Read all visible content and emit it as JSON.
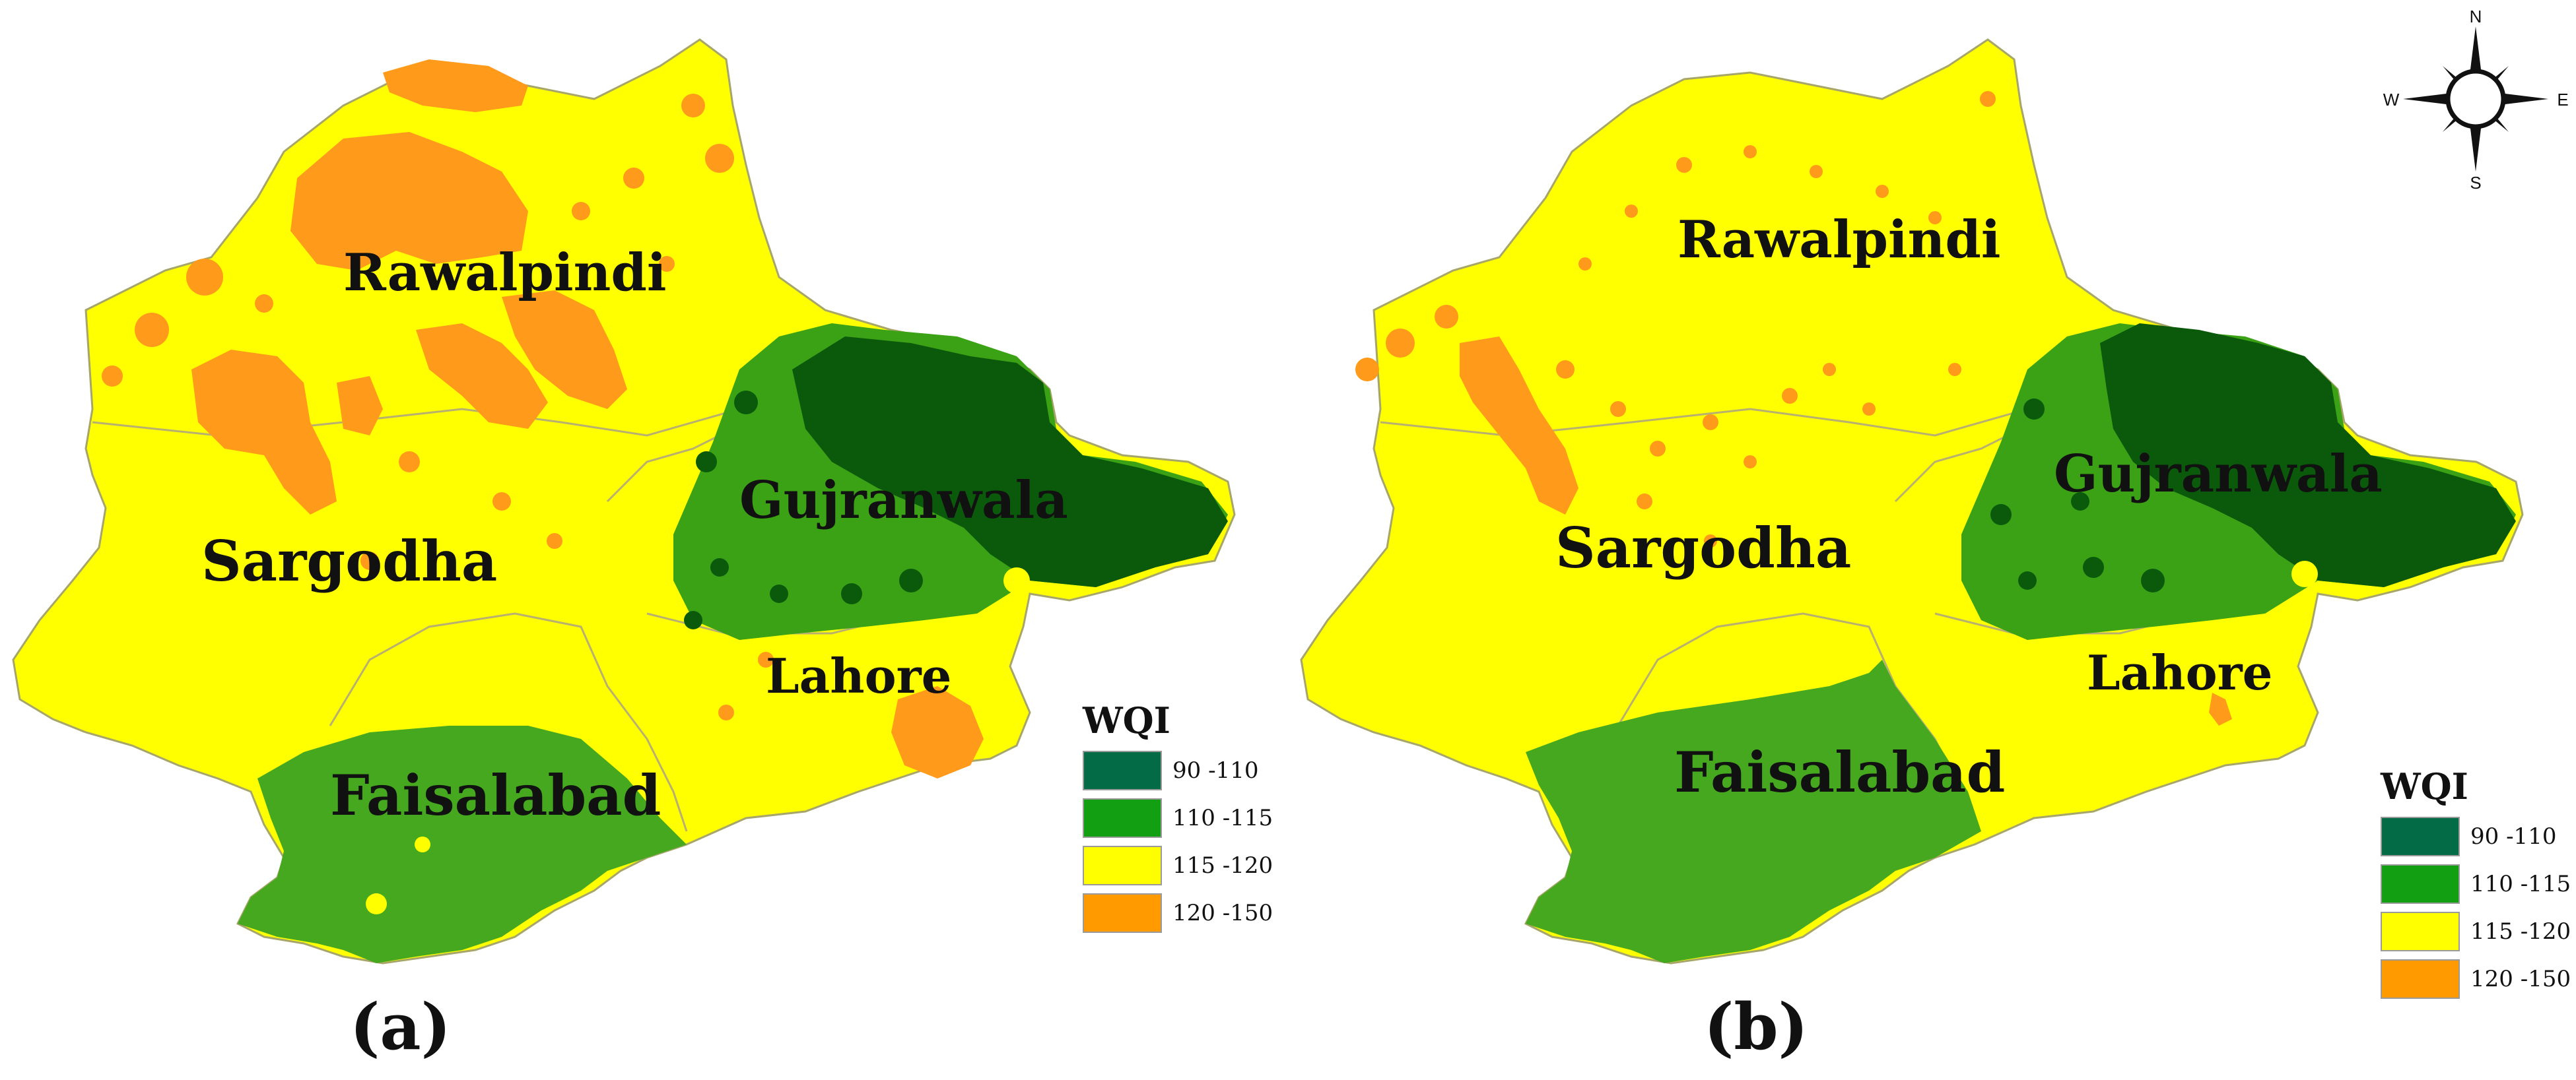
{
  "figure": {
    "panels": [
      {
        "id": "a",
        "label": "(a)",
        "regions": [
          {
            "name": "Rawalpindi",
            "wqi_class": "115-120"
          },
          {
            "name": "Sargodha",
            "wqi_class": "115-120"
          },
          {
            "name": "Gujranwala",
            "wqi_class": "90-110"
          },
          {
            "name": "Lahore",
            "wqi_class": "115-120"
          },
          {
            "name": "Faisalabad",
            "wqi_class": "110-115"
          }
        ],
        "legend": {
          "title": "WQI",
          "items": [
            {
              "label": "90 -110",
              "color": "#046b47"
            },
            {
              "label": "110 -115",
              "color": "#12a012"
            },
            {
              "label": "115 -120",
              "color": "#ffff00"
            },
            {
              "label": "120 -150",
              "color": "#ff9a00"
            }
          ]
        }
      },
      {
        "id": "b",
        "label": "(b)",
        "regions": [
          {
            "name": "Rawalpindi",
            "wqi_class": "115-120"
          },
          {
            "name": "Sargodha",
            "wqi_class": "115-120"
          },
          {
            "name": "Gujranwala",
            "wqi_class": "90-110"
          },
          {
            "name": "Lahore",
            "wqi_class": "115-120"
          },
          {
            "name": "Faisalabad",
            "wqi_class": "110-115"
          }
        ],
        "legend": {
          "title": "WQI",
          "items": [
            {
              "label": "90 -110",
              "color": "#046b47"
            },
            {
              "label": "110 -115",
              "color": "#12a012"
            },
            {
              "label": "115 -120",
              "color": "#ffff00"
            },
            {
              "label": "120 -150",
              "color": "#ff9a00"
            }
          ]
        }
      }
    ],
    "compass": {
      "n": "N",
      "s": "S",
      "e": "E",
      "w": "W"
    },
    "colors": {
      "dark_green": "#0b5a0b",
      "green": "#2f9a0f",
      "mid_green": "#45b01a",
      "yellow": "#ffff00",
      "orange": "#ff9a1a",
      "border": "#9b9b6a"
    }
  }
}
